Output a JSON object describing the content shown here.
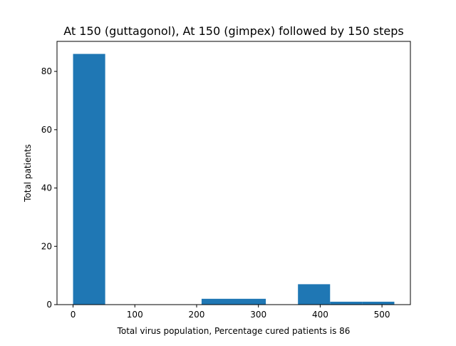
{
  "chart_data": {
    "type": "bar",
    "title": "At 150 (guttagonol), At 150 (gimpex) followed by 150 steps",
    "xlabel": "Total virus population, Percentage cured patients is 86",
    "ylabel": "Total patients",
    "bins": [
      {
        "x0": 0,
        "x1": 52,
        "count": 86
      },
      {
        "x0": 52,
        "x1": 104,
        "count": 0
      },
      {
        "x0": 104,
        "x1": 156,
        "count": 0
      },
      {
        "x0": 156,
        "x1": 208,
        "count": 0
      },
      {
        "x0": 208,
        "x1": 260,
        "count": 2
      },
      {
        "x0": 260,
        "x1": 312,
        "count": 2
      },
      {
        "x0": 312,
        "x1": 364,
        "count": 0
      },
      {
        "x0": 364,
        "x1": 416,
        "count": 7
      },
      {
        "x0": 416,
        "x1": 468,
        "count": 1
      },
      {
        "x0": 468,
        "x1": 520,
        "count": 1
      }
    ],
    "xlim": [
      -26,
      546
    ],
    "ylim": [
      0,
      90.3
    ],
    "xticks": [
      0,
      100,
      200,
      300,
      400,
      500
    ],
    "yticks": [
      0,
      20,
      40,
      60,
      80
    ],
    "bar_color": "#1f77b4",
    "grid": false
  }
}
